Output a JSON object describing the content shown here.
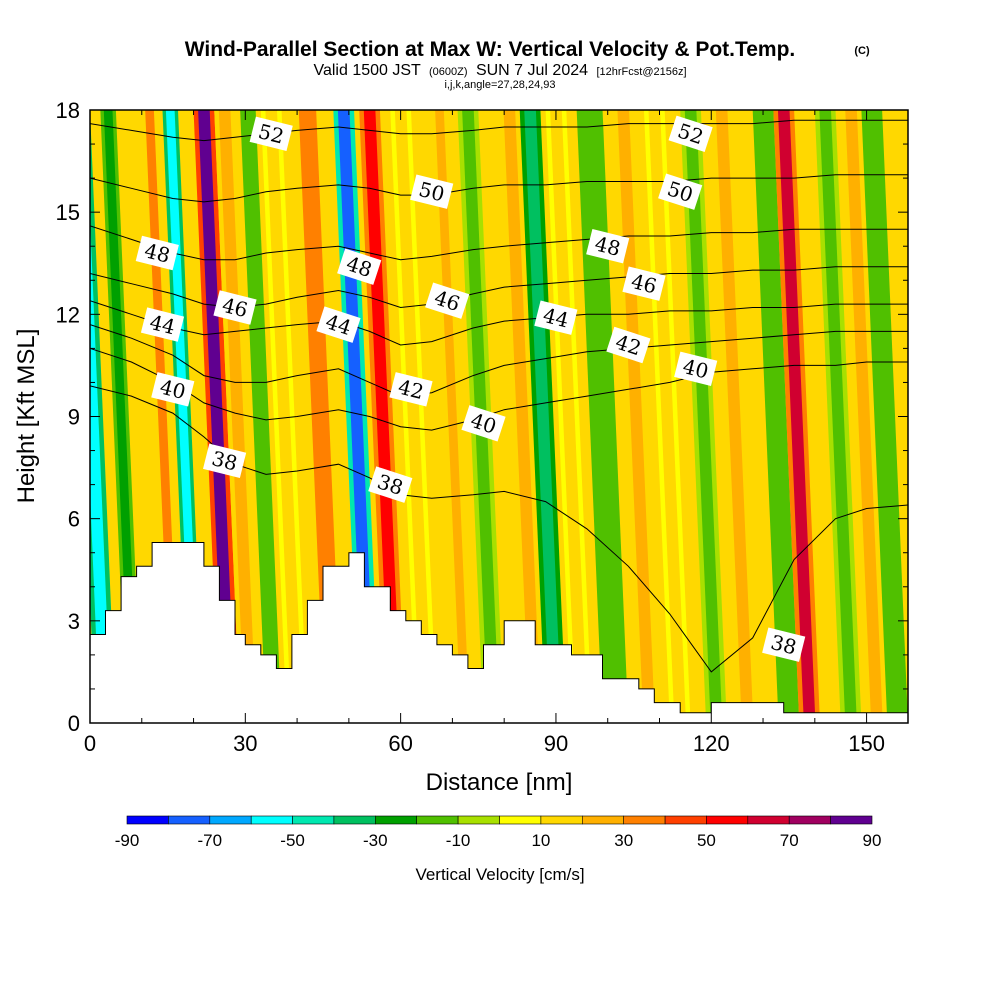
{
  "title": {
    "main": "Wind-Parallel Section at Max W: Vertical Velocity & Pot.Temp.",
    "copyright": "(C)",
    "valid_prefix": "Valid 1500 JST",
    "valid_utc": "(0600Z)",
    "valid_date": "SUN 7 Jul 2024",
    "forecast": "[12hrFcst@2156z]",
    "indices": "i,j,k,angle=27,28,24,93"
  },
  "chart_data": {
    "type": "heatmap",
    "xlabel": "Distance [nm]",
    "ylabel": "Height [Kft MSL]",
    "xlim": [
      0,
      158
    ],
    "ylim": [
      0,
      18
    ],
    "x_ticks": [
      0,
      30,
      60,
      90,
      120,
      150
    ],
    "y_ticks": [
      0,
      3,
      6,
      9,
      12,
      15,
      18
    ],
    "colorbar": {
      "title": "Vertical Velocity [cm/s]",
      "tick_labels": [
        "-90",
        "-70",
        "-50",
        "-30",
        "-10",
        "10",
        "30",
        "50",
        "70",
        "90"
      ],
      "tick_values": [
        -90,
        -70,
        -50,
        -30,
        -10,
        10,
        30,
        50,
        70,
        90
      ],
      "colors": [
        "#0000ff",
        "#1560ff",
        "#00a8ff",
        "#00ffff",
        "#00e8b0",
        "#00c060",
        "#00a000",
        "#50c000",
        "#a8e000",
        "#ffff00",
        "#ffd800",
        "#ffb000",
        "#ff8000",
        "#ff4000",
        "#ff0000",
        "#d00030",
        "#a00060",
        "#600090"
      ],
      "levels": [
        -90,
        -80,
        -70,
        -60,
        -50,
        -40,
        -30,
        -20,
        -10,
        0,
        10,
        20,
        30,
        40,
        50,
        60,
        70,
        80,
        90
      ]
    },
    "vertical_velocity_bands": [
      {
        "x0": 1,
        "x1": 5,
        "value": -55
      },
      {
        "x0": 7,
        "x1": 10,
        "value": -25
      },
      {
        "x0": 15,
        "x1": 18,
        "value": 35
      },
      {
        "x0": 19,
        "x1": 22,
        "value": -55
      },
      {
        "x0": 25,
        "x1": 29,
        "value": 80
      },
      {
        "x0": 29,
        "x1": 33,
        "value": 25
      },
      {
        "x0": 34,
        "x1": 37,
        "value": -20
      },
      {
        "x0": 38,
        "x1": 42,
        "value": 15
      },
      {
        "x0": 44,
        "x1": 50,
        "value": 35
      },
      {
        "x0": 52,
        "x1": 56,
        "value": -75
      },
      {
        "x0": 57,
        "x1": 61,
        "value": 55
      },
      {
        "x0": 63,
        "x1": 67,
        "value": 12
      },
      {
        "x0": 71,
        "x1": 74,
        "value": 20
      },
      {
        "x0": 76,
        "x1": 80,
        "value": -15
      },
      {
        "x0": 84,
        "x1": 88,
        "value": 22
      },
      {
        "x0": 88,
        "x1": 92,
        "value": -40
      },
      {
        "x0": 93,
        "x1": 97,
        "value": 15
      },
      {
        "x0": 99,
        "x1": 104,
        "value": -20
      },
      {
        "x0": 106,
        "x1": 110,
        "value": 25
      },
      {
        "x0": 112,
        "x1": 116,
        "value": 10
      },
      {
        "x0": 119,
        "x1": 123,
        "value": -15
      },
      {
        "x0": 125,
        "x1": 129,
        "value": 28
      },
      {
        "x0": 133,
        "x1": 137,
        "value": -20
      },
      {
        "x0": 137,
        "x1": 141,
        "value": 60
      },
      {
        "x0": 145,
        "x1": 149,
        "value": -15
      },
      {
        "x0": 150,
        "x1": 154,
        "value": 25
      },
      {
        "x0": 154,
        "x1": 158,
        "value": -20
      }
    ],
    "terrain": {
      "x": [
        0,
        3,
        3,
        6,
        6,
        9,
        9,
        12,
        12,
        15,
        15,
        22,
        22,
        25,
        25,
        28,
        28,
        30,
        30,
        33,
        33,
        36,
        36,
        39,
        39,
        42,
        42,
        45,
        45,
        48,
        48,
        50,
        50,
        53,
        53,
        58,
        58,
        61,
        61,
        64,
        64,
        67,
        67,
        70,
        70,
        73,
        73,
        76,
        76,
        80,
        80,
        83,
        83,
        86,
        86,
        93,
        93,
        96,
        96,
        99,
        99,
        106,
        106,
        109,
        109,
        112,
        112,
        114,
        114,
        116,
        116,
        120,
        120,
        134,
        134,
        141,
        141,
        158
      ],
      "height": [
        2.6,
        2.6,
        3.3,
        3.3,
        4.3,
        4.3,
        4.6,
        4.6,
        5.3,
        5.3,
        5.3,
        5.3,
        4.6,
        4.6,
        3.6,
        3.6,
        2.6,
        2.6,
        2.3,
        2.3,
        2.0,
        2.0,
        1.6,
        1.6,
        2.6,
        2.6,
        3.6,
        3.6,
        4.6,
        4.6,
        4.6,
        4.6,
        5.0,
        5.0,
        4.0,
        4.0,
        3.3,
        3.3,
        3.0,
        3.0,
        2.6,
        2.6,
        2.3,
        2.3,
        2.0,
        2.0,
        1.6,
        1.6,
        2.3,
        2.3,
        3.0,
        3.0,
        3.0,
        3.0,
        2.3,
        2.3,
        2.0,
        2.0,
        2.0,
        2.0,
        1.3,
        1.3,
        1.0,
        1.0,
        0.6,
        0.6,
        0.6,
        0.6,
        0.3,
        0.3,
        0.3,
        0.3,
        0.6,
        0.6,
        0.3,
        0.3,
        0.3,
        0.3
      ]
    },
    "potential_temperature_contours": [
      {
        "label": "38",
        "x": [
          0,
          8,
          16,
          22,
          28,
          34,
          40,
          48,
          54,
          60,
          66,
          74,
          80,
          88,
          96,
          104,
          112,
          120,
          128,
          136,
          144,
          150,
          158
        ],
        "y": [
          9.9,
          9.6,
          9.1,
          8.4,
          7.6,
          7.3,
          7.4,
          7.6,
          7.2,
          6.7,
          6.6,
          6.7,
          6.8,
          6.5,
          5.7,
          4.6,
          3.2,
          1.5,
          2.5,
          4.8,
          6.0,
          6.3,
          6.4
        ],
        "label_positions": [
          {
            "x": 26,
            "y": 7.7
          },
          {
            "x": 58,
            "y": 7.0
          },
          {
            "x": 134,
            "y": 2.3
          }
        ]
      },
      {
        "label": "40",
        "x": [
          0,
          8,
          16,
          22,
          28,
          34,
          40,
          48,
          54,
          60,
          66,
          74,
          80,
          88,
          96,
          104,
          112,
          120,
          128,
          136,
          144,
          150,
          158
        ],
        "y": [
          11.0,
          10.6,
          10.0,
          9.4,
          9.1,
          8.9,
          9.0,
          9.2,
          9.0,
          8.7,
          8.6,
          8.9,
          9.2,
          9.4,
          9.6,
          9.8,
          10.0,
          10.3,
          10.4,
          10.5,
          10.5,
          10.6,
          10.6
        ],
        "label_positions": [
          {
            "x": 16,
            "y": 9.8
          },
          {
            "x": 76,
            "y": 8.8
          },
          {
            "x": 117,
            "y": 10.4
          }
        ]
      },
      {
        "label": "42",
        "x": [
          0,
          8,
          16,
          22,
          28,
          34,
          40,
          48,
          54,
          60,
          66,
          74,
          80,
          88,
          96,
          104,
          112,
          120,
          128,
          136,
          144,
          150,
          158
        ],
        "y": [
          11.7,
          11.3,
          10.8,
          10.2,
          10.0,
          10.0,
          10.2,
          10.4,
          10.0,
          9.6,
          9.7,
          10.2,
          10.5,
          10.7,
          10.9,
          11.0,
          11.1,
          11.2,
          11.3,
          11.4,
          11.5,
          11.5,
          11.5
        ],
        "label_positions": [
          {
            "x": 62,
            "y": 9.8
          },
          {
            "x": 104,
            "y": 11.1
          }
        ]
      },
      {
        "label": "44",
        "x": [
          0,
          8,
          16,
          22,
          28,
          34,
          40,
          48,
          54,
          60,
          66,
          74,
          80,
          88,
          96,
          104,
          112,
          120,
          128,
          136,
          144,
          150,
          158
        ],
        "y": [
          12.4,
          12.0,
          11.6,
          11.4,
          11.5,
          11.6,
          11.7,
          11.8,
          11.5,
          11.1,
          11.2,
          11.6,
          11.8,
          11.9,
          12.0,
          12.0,
          12.1,
          12.1,
          12.2,
          12.2,
          12.3,
          12.3,
          12.3
        ],
        "label_positions": [
          {
            "x": 14,
            "y": 11.7
          },
          {
            "x": 48,
            "y": 11.7
          },
          {
            "x": 90,
            "y": 11.9
          }
        ]
      },
      {
        "label": "46",
        "x": [
          0,
          8,
          16,
          22,
          28,
          34,
          40,
          48,
          54,
          60,
          66,
          74,
          80,
          88,
          96,
          104,
          112,
          120,
          128,
          136,
          144,
          150,
          158
        ],
        "y": [
          13.2,
          12.9,
          12.6,
          12.3,
          12.2,
          12.3,
          12.5,
          12.7,
          12.5,
          12.2,
          12.3,
          12.6,
          12.8,
          12.9,
          13.0,
          13.1,
          13.2,
          13.2,
          13.3,
          13.3,
          13.4,
          13.4,
          13.4
        ],
        "label_positions": [
          {
            "x": 28,
            "y": 12.2
          },
          {
            "x": 69,
            "y": 12.4
          },
          {
            "x": 107,
            "y": 12.9
          }
        ]
      },
      {
        "label": "48",
        "x": [
          0,
          8,
          16,
          22,
          28,
          34,
          40,
          48,
          54,
          60,
          66,
          74,
          80,
          88,
          96,
          104,
          112,
          120,
          128,
          136,
          144,
          150,
          158
        ],
        "y": [
          14.6,
          14.2,
          13.8,
          13.6,
          13.6,
          13.8,
          13.9,
          14.0,
          13.8,
          13.6,
          13.7,
          13.9,
          14.0,
          14.1,
          14.2,
          14.3,
          14.3,
          14.4,
          14.4,
          14.5,
          14.5,
          14.5,
          14.5
        ],
        "label_positions": [
          {
            "x": 13,
            "y": 13.8
          },
          {
            "x": 52,
            "y": 13.4
          },
          {
            "x": 100,
            "y": 14.0
          }
        ]
      },
      {
        "label": "50",
        "x": [
          0,
          8,
          16,
          22,
          28,
          34,
          40,
          48,
          54,
          60,
          66,
          74,
          80,
          88,
          96,
          104,
          112,
          120,
          128,
          136,
          144,
          150,
          158
        ],
        "y": [
          16.0,
          15.7,
          15.4,
          15.3,
          15.4,
          15.6,
          15.7,
          15.8,
          15.7,
          15.5,
          15.5,
          15.7,
          15.8,
          15.8,
          15.9,
          15.9,
          15.9,
          16.0,
          16.0,
          16.0,
          16.1,
          16.1,
          16.1
        ],
        "label_positions": [
          {
            "x": 66,
            "y": 15.6
          },
          {
            "x": 114,
            "y": 15.6
          }
        ]
      },
      {
        "label": "52",
        "x": [
          0,
          8,
          16,
          22,
          28,
          34,
          40,
          48,
          54,
          60,
          66,
          74,
          80,
          88,
          96,
          104,
          112,
          120,
          128,
          136,
          144,
          150,
          158
        ],
        "y": [
          17.6,
          17.4,
          17.2,
          17.1,
          17.2,
          17.3,
          17.4,
          17.5,
          17.4,
          17.3,
          17.3,
          17.4,
          17.5,
          17.5,
          17.5,
          17.6,
          17.6,
          17.6,
          17.6,
          17.7,
          17.7,
          17.7,
          17.7
        ],
        "label_positions": [
          {
            "x": 35,
            "y": 17.3
          },
          {
            "x": 116,
            "y": 17.3
          }
        ]
      }
    ]
  }
}
